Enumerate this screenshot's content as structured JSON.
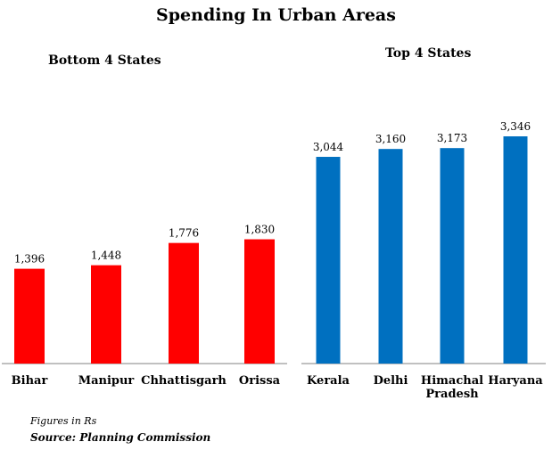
{
  "title": "Spending In Urban Areas",
  "footnote": "Figures in Rs",
  "source": "Source: Planning Commission",
  "chart_data": [
    {
      "type": "bar",
      "title": "Bottom 4 States",
      "color": "#ff0000",
      "categories": [
        "Bihar",
        "Manipur",
        "Chhattisgarh",
        "Orissa"
      ],
      "values": [
        1396,
        1448,
        1776,
        1830
      ],
      "labels": [
        "1,396",
        "1,448",
        "1,776",
        "1,830"
      ]
    },
    {
      "type": "bar",
      "title": "Top 4 States",
      "color": "#0070c0",
      "categories": [
        "Kerala",
        "Delhi",
        "Himachal Pradesh",
        "Haryana"
      ],
      "values": [
        3044,
        3160,
        3173,
        3346
      ],
      "labels": [
        "3,044",
        "3,160",
        "3,173",
        "3,346"
      ]
    }
  ]
}
